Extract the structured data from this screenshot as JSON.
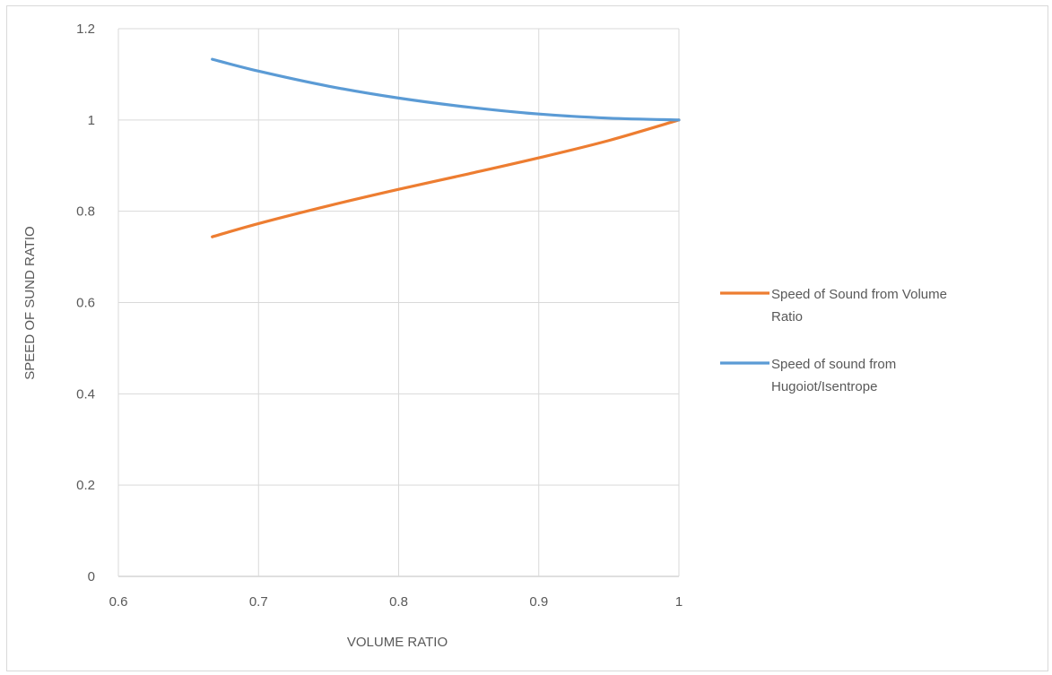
{
  "chart_data": {
    "type": "line",
    "title": "",
    "xlabel": "VOLUME RATIO",
    "ylabel": "SPEED OF SUND RATIO",
    "xlim": [
      0.6,
      1
    ],
    "ylim": [
      0,
      1.2
    ],
    "xticks": [
      "0.6",
      "0.7",
      "0.8",
      "0.9",
      "1"
    ],
    "yticks": [
      "0",
      "0.2",
      "0.4",
      "0.6",
      "0.8",
      "1",
      "1.2"
    ],
    "grid": true,
    "legend_position": "right",
    "series": [
      {
        "name": "Speed of Sound from Volume Ratio",
        "legend_lines": [
          "Speed of Sound from Volume",
          "Ratio"
        ],
        "color": "#ED7D31",
        "x": [
          0.667,
          0.7,
          0.75,
          0.8,
          0.85,
          0.9,
          0.95,
          1.0
        ],
        "y": [
          0.744,
          0.773,
          0.812,
          0.848,
          0.882,
          0.917,
          0.955,
          1.0
        ]
      },
      {
        "name": "Speed of sound from Hugoiot/Isentrope",
        "legend_lines": [
          "Speed of sound from",
          "Hugoiot/Isentrope"
        ],
        "color": "#5B9BD5",
        "x": [
          0.667,
          0.7,
          0.75,
          0.8,
          0.85,
          0.9,
          0.95,
          1.0
        ],
        "y": [
          1.133,
          1.107,
          1.074,
          1.048,
          1.028,
          1.013,
          1.004,
          1.0
        ]
      }
    ]
  }
}
